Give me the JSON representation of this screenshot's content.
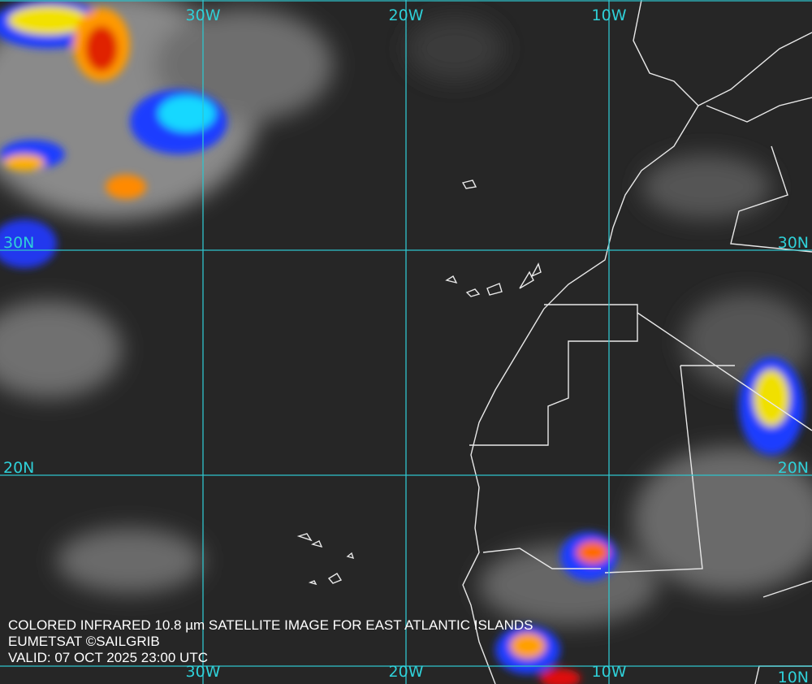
{
  "map": {
    "longitude_labels_top": [
      "30W",
      "20W",
      "10W"
    ],
    "longitude_labels_bottom": [
      "30W",
      "20W",
      "10W"
    ],
    "latitude_labels_left": [
      "30N",
      "20N"
    ],
    "latitude_labels_right": [
      "30N",
      "20N",
      "10N"
    ],
    "caption": [
      "COLORED INFRARED 10.8 µm SATELLITE IMAGE FOR EAST ATLANTIC ISLANDS",
      "EUMETSAT ©SAILGRIB",
      "VALID:  07 OCT 2025 23:00 UTC"
    ]
  }
}
